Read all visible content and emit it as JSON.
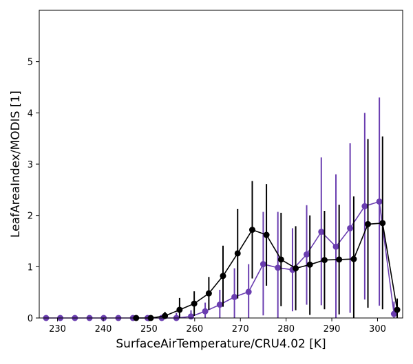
{
  "chart_data": {
    "type": "line",
    "title": "",
    "xlabel": "SurfaceAirTemperature/CRU4.02 [K]",
    "ylabel": "LeafAreaIndex/MODIS [1]",
    "xlim": [
      226,
      305.5
    ],
    "ylim": [
      0,
      6
    ],
    "xticks": [
      230,
      240,
      250,
      260,
      270,
      280,
      290,
      300
    ],
    "yticks": [
      0,
      1,
      2,
      3,
      4,
      5
    ],
    "grid": false,
    "legend": "none",
    "series": [
      {
        "color": "#6a3db0",
        "points": [
          {
            "x": 227.5,
            "y": 0.0,
            "lo": 0.0,
            "hi": 0.0
          },
          {
            "x": 230.6,
            "y": 0.0,
            "lo": 0.0,
            "hi": 0.0
          },
          {
            "x": 233.8,
            "y": 0.0,
            "lo": 0.0,
            "hi": 0.0
          },
          {
            "x": 237.0,
            "y": 0.0,
            "lo": 0.0,
            "hi": 0.0
          },
          {
            "x": 240.1,
            "y": 0.0,
            "lo": 0.0,
            "hi": 0.0
          },
          {
            "x": 243.3,
            "y": 0.0,
            "lo": 0.0,
            "hi": 0.0
          },
          {
            "x": 246.5,
            "y": 0.0,
            "lo": 0.0,
            "hi": 0.02
          },
          {
            "x": 249.7,
            "y": 0.0,
            "lo": 0.0,
            "hi": 0.02
          },
          {
            "x": 252.8,
            "y": 0.0,
            "lo": 0.0,
            "hi": 0.05
          },
          {
            "x": 256.0,
            "y": 0.0,
            "lo": 0.0,
            "hi": 0.1
          },
          {
            "x": 259.2,
            "y": 0.03,
            "lo": 0.0,
            "hi": 0.15
          },
          {
            "x": 262.3,
            "y": 0.13,
            "lo": 0.0,
            "hi": 0.3
          },
          {
            "x": 265.5,
            "y": 0.26,
            "lo": 0.0,
            "hi": 0.55
          },
          {
            "x": 268.7,
            "y": 0.41,
            "lo": 0.0,
            "hi": 0.97
          },
          {
            "x": 271.8,
            "y": 0.51,
            "lo": 0.0,
            "hi": 1.05
          },
          {
            "x": 275.0,
            "y": 1.05,
            "lo": 0.05,
            "hi": 2.07
          },
          {
            "x": 278.2,
            "y": 0.98,
            "lo": 0.0,
            "hi": 2.07
          },
          {
            "x": 281.4,
            "y": 0.94,
            "lo": 0.13,
            "hi": 1.75
          },
          {
            "x": 284.5,
            "y": 1.24,
            "lo": 0.26,
            "hi": 2.2
          },
          {
            "x": 287.7,
            "y": 1.68,
            "lo": 0.25,
            "hi": 3.13
          },
          {
            "x": 290.9,
            "y": 1.39,
            "lo": 0.0,
            "hi": 2.8
          },
          {
            "x": 294.0,
            "y": 1.75,
            "lo": 0.1,
            "hi": 3.41
          },
          {
            "x": 297.2,
            "y": 2.18,
            "lo": 0.36,
            "hi": 4.0
          },
          {
            "x": 300.4,
            "y": 2.27,
            "lo": 0.24,
            "hi": 4.3
          },
          {
            "x": 303.6,
            "y": 0.08,
            "lo": 0.0,
            "hi": 0.32
          }
        ]
      },
      {
        "color": "#000000",
        "points": [
          {
            "x": 247.2,
            "y": 0.0,
            "lo": 0.0,
            "hi": 0.01
          },
          {
            "x": 250.4,
            "y": 0.0,
            "lo": 0.0,
            "hi": 0.02
          },
          {
            "x": 253.5,
            "y": 0.04,
            "lo": 0.0,
            "hi": 0.12
          },
          {
            "x": 256.7,
            "y": 0.16,
            "lo": 0.0,
            "hi": 0.39
          },
          {
            "x": 259.9,
            "y": 0.28,
            "lo": 0.04,
            "hi": 0.52
          },
          {
            "x": 263.1,
            "y": 0.48,
            "lo": 0.16,
            "hi": 0.8
          },
          {
            "x": 266.2,
            "y": 0.82,
            "lo": 0.22,
            "hi": 1.41
          },
          {
            "x": 269.4,
            "y": 1.26,
            "lo": 0.38,
            "hi": 2.13
          },
          {
            "x": 272.6,
            "y": 1.72,
            "lo": 0.77,
            "hi": 2.67
          },
          {
            "x": 275.7,
            "y": 1.62,
            "lo": 0.63,
            "hi": 2.61
          },
          {
            "x": 278.9,
            "y": 1.14,
            "lo": 0.23,
            "hi": 2.05
          },
          {
            "x": 282.1,
            "y": 0.97,
            "lo": 0.15,
            "hi": 1.79
          },
          {
            "x": 285.2,
            "y": 1.04,
            "lo": 0.06,
            "hi": 2.0
          },
          {
            "x": 288.4,
            "y": 1.13,
            "lo": 0.17,
            "hi": 2.09
          },
          {
            "x": 291.6,
            "y": 1.14,
            "lo": 0.07,
            "hi": 2.21
          },
          {
            "x": 294.8,
            "y": 1.15,
            "lo": 0.0,
            "hi": 2.37
          },
          {
            "x": 297.9,
            "y": 1.83,
            "lo": 0.2,
            "hi": 3.49
          },
          {
            "x": 301.1,
            "y": 1.85,
            "lo": 0.17,
            "hi": 3.54
          },
          {
            "x": 304.3,
            "y": 0.16,
            "lo": 0.0,
            "hi": 0.38
          }
        ]
      }
    ]
  }
}
